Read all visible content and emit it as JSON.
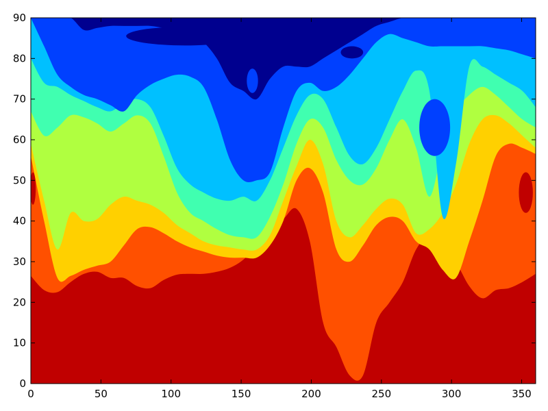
{
  "chart_data": {
    "type": "contour",
    "title": "",
    "xlabel": "",
    "ylabel": "",
    "xlim": [
      0,
      360
    ],
    "ylim": [
      0,
      90
    ],
    "xticks": [
      0,
      50,
      100,
      150,
      200,
      250,
      300,
      350
    ],
    "yticks": [
      0,
      10,
      20,
      30,
      40,
      50,
      60,
      70,
      80,
      90
    ],
    "grid": false,
    "colormap": "jet",
    "levels": [
      {
        "name": "level-1",
        "color": "#00008f"
      },
      {
        "name": "level-2",
        "color": "#0040ff"
      },
      {
        "name": "level-3",
        "color": "#00c0ff"
      },
      {
        "name": "level-4",
        "color": "#40ffb0"
      },
      {
        "name": "level-5",
        "color": "#b0ff40"
      },
      {
        "name": "level-6",
        "color": "#ffd000"
      },
      {
        "name": "level-7",
        "color": "#ff5000"
      },
      {
        "name": "level-8",
        "color": "#c00000"
      }
    ],
    "boundaries": [
      {
        "level": 8,
        "y": [
          26.5,
          23,
          22.5,
          25,
          27,
          27.5,
          26,
          26,
          24,
          23.5,
          25.5,
          26.8,
          27,
          27,
          27.5,
          28.5,
          30.5,
          34,
          38,
          40.5,
          43,
          35,
          15,
          9,
          2,
          2,
          15,
          20,
          25,
          33,
          36.5,
          35,
          30,
          24,
          21,
          23,
          23.5,
          25,
          27
        ]
      },
      {
        "level": 7,
        "y": [
          56,
          40,
          26,
          26.5,
          28,
          29,
          30,
          34,
          38,
          38.5,
          37,
          35,
          33.5,
          32.5,
          31.5,
          31,
          31,
          31,
          34,
          40,
          50,
          53,
          47,
          33,
          30,
          34,
          39,
          41,
          40,
          35,
          33,
          28,
          26,
          35,
          45,
          56,
          59,
          58,
          56.5
        ]
      },
      {
        "level": 6,
        "y": [
          59,
          45,
          33,
          42,
          40,
          40.5,
          44,
          46,
          45,
          44,
          42,
          39,
          37,
          35,
          34,
          33.5,
          33,
          33,
          36.5,
          45,
          53.5,
          60,
          54,
          40,
          36,
          39,
          43,
          45.5,
          44,
          37,
          38,
          42,
          49,
          59,
          65,
          66,
          64,
          61,
          58
        ]
      },
      {
        "level": 5,
        "y": [
          67,
          61,
          63,
          66,
          65.5,
          64,
          62,
          64,
          66,
          64,
          56,
          47,
          42,
          40,
          38,
          36.5,
          36,
          36,
          41,
          49,
          59,
          65,
          63,
          55,
          50,
          49,
          53,
          60,
          65,
          58,
          46,
          58,
          67,
          71,
          73,
          71,
          68,
          65,
          63
        ]
      },
      {
        "level": 4,
        "y": [
          80,
          74,
          73,
          71,
          69.5,
          68,
          67,
          69,
          70,
          68,
          61,
          53,
          49,
          47,
          45.5,
          45,
          46,
          45,
          50,
          58,
          66,
          71,
          70,
          63,
          56,
          54,
          58,
          65,
          72,
          77,
          72,
          41,
          54,
          78,
          78,
          76,
          74,
          72,
          68
        ]
      },
      {
        "level": 3,
        "y": [
          90,
          83,
          76,
          73,
          71,
          70,
          68.5,
          67,
          71,
          73.5,
          75,
          76,
          75.5,
          73,
          65,
          55,
          50,
          50,
          52,
          63,
          72,
          74,
          72,
          73,
          76,
          80,
          84,
          86,
          85,
          84,
          83,
          83,
          83,
          83,
          83,
          82.5,
          82,
          81,
          80
        ]
      },
      {
        "level": 2,
        "y": [
          90,
          90,
          90,
          90,
          87,
          87.5,
          88,
          88,
          88,
          88,
          87.5,
          87,
          86,
          84,
          80,
          74,
          72,
          70,
          75,
          78,
          78,
          78,
          80,
          82,
          84,
          86,
          88,
          89,
          90,
          90,
          90,
          90,
          90,
          90,
          90,
          90,
          90,
          90,
          90
        ]
      },
      {
        "level": 1,
        "y": [
          90,
          90,
          90,
          90,
          90,
          90,
          90,
          90,
          90,
          90,
          90,
          90,
          90,
          90,
          90,
          90,
          90,
          90,
          90,
          90,
          90,
          90,
          90,
          90,
          90,
          90,
          90,
          90,
          90,
          90,
          90,
          90,
          90,
          90,
          90,
          90,
          90,
          90,
          90
        ]
      }
    ],
    "islands": [
      {
        "level": 1,
        "cx": 110,
        "cy": 85.5,
        "rx": 42,
        "ry": 2.3
      },
      {
        "level": 2,
        "cx": 158,
        "cy": 74.5,
        "rx": 4,
        "ry": 3
      },
      {
        "level": 1,
        "cx": 229,
        "cy": 81.5,
        "rx": 8,
        "ry": 1.5
      },
      {
        "level": 2,
        "cx": 288,
        "cy": 63,
        "rx": 11,
        "ry": 7
      },
      {
        "level": 8,
        "cx": 353,
        "cy": 47,
        "rx": 5,
        "ry": 5
      },
      {
        "level": 8,
        "cx": 1.5,
        "cy": 48,
        "rx": 2,
        "ry": 4
      }
    ]
  }
}
